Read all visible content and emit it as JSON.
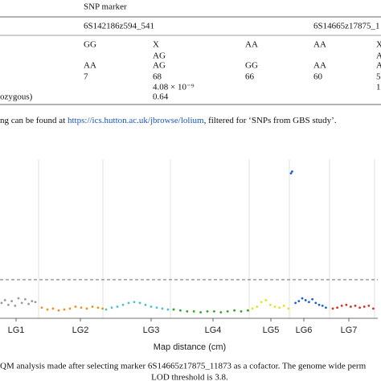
{
  "table": {
    "header": "SNP marker",
    "markers": [
      "6S142186z594_541",
      "6S14665z17875_1"
    ],
    "rows": [
      [
        null,
        "GG",
        "X",
        "AA",
        "AA",
        "X"
      ],
      [
        null,
        null,
        "AG",
        null,
        null,
        "A"
      ],
      [
        null,
        "AA",
        "AG",
        "GG",
        "AA",
        "A"
      ],
      [
        null,
        "7",
        "68",
        "66",
        "60",
        "5"
      ],
      [
        null,
        null,
        "4.08 × 10⁻⁹",
        null,
        null,
        "1"
      ],
      [
        "ozygous)",
        null,
        "0.64",
        null,
        null,
        null
      ]
    ]
  },
  "footnote": {
    "before": "ng can be found at ",
    "link": "https://ics.hutton.ac.uk/jbrowse/lolium",
    "after": ", filtered for ‘SNPs from GBS study’."
  },
  "chart_data": {
    "type": "scatter",
    "xlabel": "Map distance (cm)",
    "threshold": 3.8,
    "series": [
      {
        "name": "LG1",
        "color": "#9a9a9a",
        "x": [
          0,
          6,
          12,
          18,
          24,
          30,
          36,
          42,
          48,
          54,
          60
        ],
        "values": [
          1.3,
          1.6,
          1.1,
          1.5,
          1.0,
          1.8,
          1.3,
          1.7,
          1.2,
          1.5,
          1.4
        ]
      },
      {
        "name": "LG2",
        "color": "#f0901c",
        "x": [
          0,
          10,
          20,
          30,
          40,
          50,
          60,
          70,
          80,
          90,
          100,
          108
        ],
        "values": [
          0.8,
          0.6,
          0.7,
          0.5,
          0.6,
          0.7,
          0.9,
          0.8,
          0.7,
          0.9,
          0.8,
          0.7
        ]
      },
      {
        "name": "LG3",
        "color": "#46c0d8",
        "x": [
          0,
          10,
          20,
          30,
          40,
          50,
          60,
          70,
          80,
          90,
          100,
          110,
          120
        ],
        "values": [
          0.6,
          0.8,
          0.9,
          1.1,
          1.3,
          1.4,
          1.3,
          1.1,
          0.9,
          0.8,
          0.7,
          0.6,
          0.6
        ]
      },
      {
        "name": "LG4",
        "color": "#2ca52c",
        "x": [
          0,
          12,
          24,
          36,
          48,
          60,
          72,
          84,
          96,
          108,
          120,
          132
        ],
        "values": [
          0.6,
          0.5,
          0.4,
          0.4,
          0.3,
          0.4,
          0.4,
          0.3,
          0.4,
          0.5,
          0.4,
          0.5
        ]
      },
      {
        "name": "LG5",
        "color": "#e8e21a",
        "x": [
          0,
          8,
          16,
          24,
          32,
          40,
          48,
          56,
          64
        ],
        "values": [
          0.7,
          0.9,
          1.4,
          1.6,
          1.1,
          0.9,
          0.8,
          1.0,
          0.7
        ]
      },
      {
        "name": "LG6",
        "color": "#1f5fc8",
        "x": [
          0,
          2,
          8,
          14,
          20,
          26,
          32,
          38,
          44,
          50,
          56,
          62
        ],
        "values": [
          15.2,
          15.4,
          1.3,
          1.5,
          1.8,
          1.6,
          1.4,
          1.7,
          1.3,
          1.1,
          1.0,
          0.8
        ]
      },
      {
        "name": "LG7",
        "color": "#d6321e",
        "x": [
          0,
          8,
          16,
          24,
          32,
          40,
          48,
          56,
          64,
          72
        ],
        "values": [
          0.7,
          0.8,
          1.0,
          1.1,
          0.9,
          1.0,
          0.8,
          0.9,
          1.0,
          0.7
        ]
      }
    ]
  },
  "caption": [
    "QM analysis made after selecting marker 6S14665z17875_11873 as a cofactor. The genome wide perm",
    "LOD threshold is 3.8."
  ]
}
